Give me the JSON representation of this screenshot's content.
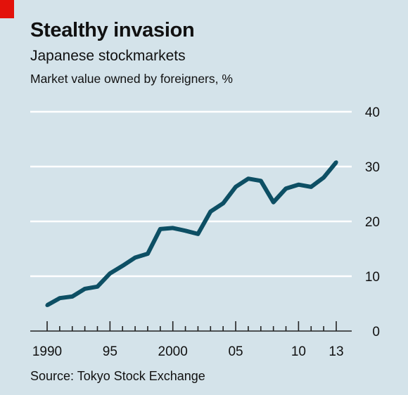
{
  "header": {
    "title": "Stealthy invasion",
    "subtitle": "Japanese stockmarkets",
    "measure": "Market value owned by foreigners, %"
  },
  "footer": {
    "source": "Source: Tokyo Stock Exchange"
  },
  "colors": {
    "background": "#d4e3ea",
    "line": "#0d4f64",
    "gridline": "#ffffff",
    "accent_tag": "#e3120b",
    "axis": "#222222"
  },
  "chart_data": {
    "type": "line",
    "x": [
      1990,
      1991,
      1992,
      1993,
      1994,
      1995,
      1996,
      1997,
      1998,
      1999,
      2000,
      2001,
      2002,
      2003,
      2004,
      2005,
      2006,
      2007,
      2008,
      2009,
      2010,
      2011,
      2012,
      2013
    ],
    "series": [
      {
        "values": [
          4.7,
          6.0,
          6.3,
          7.7,
          8.1,
          10.5,
          11.9,
          13.4,
          14.1,
          18.6,
          18.8,
          18.3,
          17.7,
          21.8,
          23.3,
          26.3,
          27.8,
          27.4,
          23.5,
          26.0,
          26.7,
          26.3,
          28.0,
          30.8
        ]
      }
    ],
    "xlim": [
      1990,
      2013
    ],
    "ylim": [
      0,
      40
    ],
    "yticks": [
      0,
      10,
      20,
      30,
      40
    ],
    "ytick_labels": [
      "0",
      "10",
      "20",
      "30",
      "40"
    ],
    "xticks": [
      1990,
      1995,
      2000,
      2005,
      2010,
      2013
    ],
    "xtick_labels": [
      "1990",
      "95",
      "2000",
      "05",
      "10",
      "13"
    ],
    "grid": true,
    "y_axis_position": "right",
    "title": "Stealthy invasion",
    "subtitle": "Japanese stockmarkets",
    "ylabel": "Market value owned by foreigners, %",
    "xlabel": ""
  }
}
